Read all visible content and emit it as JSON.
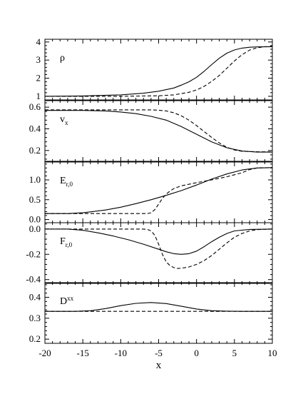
{
  "chart_data": [
    {
      "type": "line",
      "panel_label": {
        "main": "ρ",
        "sub": "",
        "sup": ""
      },
      "xlabel": "",
      "xlim": [
        -20,
        10
      ],
      "ylim": [
        0.8,
        4.15
      ],
      "yticks": [
        "1",
        "2",
        "3",
        "4"
      ],
      "ytick_values": [
        1,
        2,
        3,
        4
      ],
      "series": [
        {
          "style": "solid",
          "x": [
            -20,
            -15,
            -10,
            -7,
            -5,
            -3,
            -2,
            -1,
            0,
            1,
            2,
            3,
            4,
            5,
            6,
            7,
            8,
            10
          ],
          "y": [
            1.0,
            1.02,
            1.08,
            1.17,
            1.28,
            1.46,
            1.62,
            1.8,
            2.05,
            2.38,
            2.75,
            3.1,
            3.38,
            3.56,
            3.66,
            3.71,
            3.73,
            3.74
          ]
        },
        {
          "style": "dashed",
          "x": [
            -20,
            -10,
            -5,
            -3,
            -1,
            0,
            1,
            2,
            3,
            4,
            5,
            6,
            7,
            8,
            9,
            10
          ],
          "y": [
            1.0,
            1.0,
            1.03,
            1.08,
            1.22,
            1.35,
            1.55,
            1.82,
            2.15,
            2.55,
            2.95,
            3.3,
            3.55,
            3.68,
            3.74,
            3.75
          ]
        }
      ]
    },
    {
      "type": "line",
      "panel_label": {
        "main": "v",
        "sub": "x",
        "sup": ""
      },
      "xlabel": "",
      "xlim": [
        -20,
        10
      ],
      "ylim": [
        0.1,
        0.66
      ],
      "yticks": [
        "0.2",
        "0.4",
        "0.6"
      ],
      "ytick_values": [
        0.2,
        0.4,
        0.6
      ],
      "series": [
        {
          "style": "solid",
          "x": [
            -20,
            -15,
            -12,
            -10,
            -8,
            -6,
            -4,
            -2,
            0,
            2,
            4,
            6,
            8,
            10
          ],
          "y": [
            0.57,
            0.57,
            0.565,
            0.555,
            0.54,
            0.515,
            0.48,
            0.42,
            0.35,
            0.28,
            0.225,
            0.195,
            0.185,
            0.185
          ]
        },
        {
          "style": "dashed",
          "x": [
            -20,
            -10,
            -6,
            -5,
            -4,
            -3,
            -2,
            -1,
            0,
            1,
            2,
            3,
            4,
            5,
            6,
            8,
            10
          ],
          "y": [
            0.575,
            0.575,
            0.575,
            0.572,
            0.565,
            0.548,
            0.52,
            0.48,
            0.43,
            0.375,
            0.32,
            0.27,
            0.23,
            0.205,
            0.193,
            0.188,
            0.187
          ]
        }
      ]
    },
    {
      "type": "line",
      "panel_label": {
        "main": "E",
        "sub": "r,0",
        "sup": ""
      },
      "xlabel": "",
      "xlim": [
        -20,
        10
      ],
      "ylim": [
        -0.08,
        1.45
      ],
      "yticks": [
        "0.0",
        "0.5",
        "1.0"
      ],
      "ytick_values": [
        0.0,
        0.5,
        1.0
      ],
      "series": [
        {
          "style": "solid",
          "x": [
            -20,
            -17,
            -15,
            -12,
            -10,
            -8,
            -6,
            -4,
            -2,
            0,
            2,
            4,
            6,
            8,
            10
          ],
          "y": [
            0.15,
            0.15,
            0.17,
            0.24,
            0.31,
            0.4,
            0.5,
            0.61,
            0.73,
            0.87,
            1.02,
            1.15,
            1.25,
            1.3,
            1.31
          ]
        },
        {
          "style": "dashed",
          "x": [
            -20,
            -8,
            -6.5,
            -6,
            -5.5,
            -5,
            -4.5,
            -4,
            -3.5,
            -3,
            -2,
            0,
            2,
            4,
            6,
            7,
            8,
            10
          ],
          "y": [
            0.15,
            0.15,
            0.15,
            0.17,
            0.25,
            0.39,
            0.53,
            0.64,
            0.72,
            0.78,
            0.85,
            0.93,
            1.0,
            1.08,
            1.18,
            1.26,
            1.3,
            1.31
          ]
        }
      ]
    },
    {
      "type": "line",
      "panel_label": {
        "main": "F",
        "sub": "r,0",
        "sup": ""
      },
      "xlabel": "",
      "xlim": [
        -20,
        10
      ],
      "ylim": [
        -0.43,
        0.05
      ],
      "yticks": [
        "-0.4",
        "-0.2",
        "0.0"
      ],
      "ytick_values": [
        -0.4,
        -0.2,
        0.0
      ],
      "series": [
        {
          "style": "solid",
          "x": [
            -20,
            -17,
            -15,
            -13,
            -11,
            -9,
            -7,
            -5,
            -4,
            -3,
            -2,
            -1,
            0,
            1,
            2,
            3,
            4,
            5,
            7,
            10
          ],
          "y": [
            0.0,
            0.0,
            -0.01,
            -0.03,
            -0.055,
            -0.085,
            -0.12,
            -0.16,
            -0.18,
            -0.195,
            -0.2,
            -0.195,
            -0.175,
            -0.14,
            -0.1,
            -0.065,
            -0.035,
            -0.015,
            -0.003,
            0.0
          ]
        },
        {
          "style": "dashed",
          "x": [
            -20,
            -10,
            -7,
            -6.5,
            -6,
            -5.5,
            -5,
            -4.5,
            -4,
            -3.5,
            -3,
            -2.5,
            -2,
            -1,
            0,
            1,
            2,
            3,
            4,
            5,
            6,
            7,
            8,
            10
          ],
          "y": [
            0.0,
            0.0,
            0.0,
            -0.003,
            -0.015,
            -0.05,
            -0.12,
            -0.2,
            -0.26,
            -0.29,
            -0.305,
            -0.312,
            -0.31,
            -0.3,
            -0.28,
            -0.25,
            -0.21,
            -0.16,
            -0.11,
            -0.065,
            -0.035,
            -0.015,
            -0.005,
            0.0
          ]
        }
      ]
    },
    {
      "type": "line",
      "panel_label": {
        "main": "D",
        "sub": "",
        "sup": "xx"
      },
      "xlabel": "x",
      "xlim": [
        -20,
        10
      ],
      "ylim": [
        0.18,
        0.47
      ],
      "yticks": [
        "0.2",
        "0.3",
        "0.4"
      ],
      "ytick_values": [
        0.2,
        0.3,
        0.4
      ],
      "xticks": [
        "-20",
        "-15",
        "-10",
        "-5",
        "0",
        "5",
        "10"
      ],
      "xtick_values": [
        -20,
        -15,
        -10,
        -5,
        0,
        5,
        10
      ],
      "series": [
        {
          "style": "solid",
          "x": [
            -20,
            -16,
            -14,
            -12,
            -10,
            -8,
            -6,
            -4,
            -2,
            0,
            2,
            4,
            6,
            10
          ],
          "y": [
            0.333,
            0.333,
            0.336,
            0.346,
            0.36,
            0.371,
            0.375,
            0.37,
            0.357,
            0.344,
            0.336,
            0.334,
            0.333,
            0.333
          ]
        },
        {
          "style": "dashed",
          "x": [
            -20,
            10
          ],
          "y": [
            0.333,
            0.333
          ]
        }
      ]
    }
  ]
}
